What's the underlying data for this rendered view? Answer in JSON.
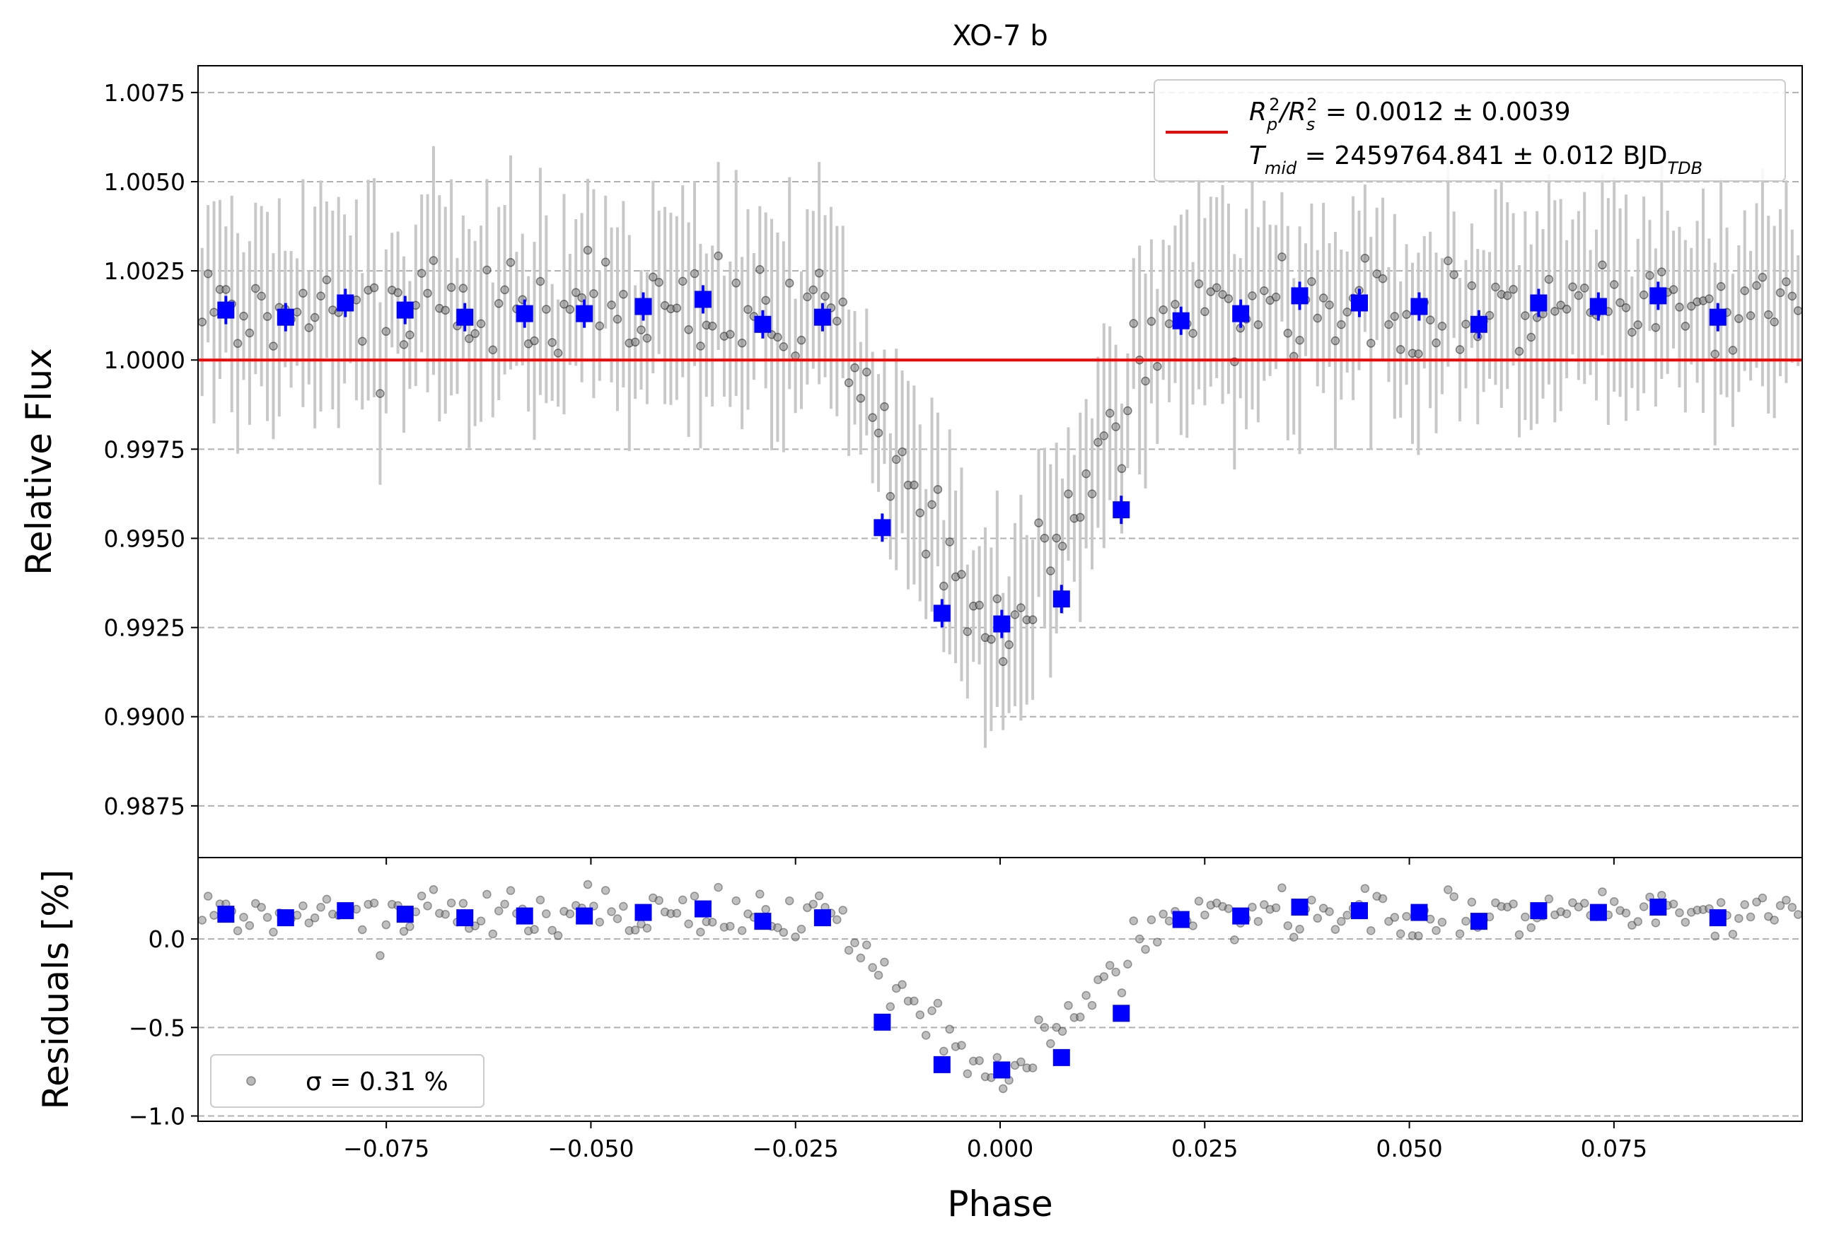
{
  "chart_data": [
    {
      "type": "scatter",
      "panel": "main",
      "title": "XO-7 b",
      "xlabel": "",
      "ylabel": "Relative Flux",
      "xlim": [
        -0.098,
        0.098
      ],
      "ylim": [
        0.98605,
        1.00825
      ],
      "grid": "horizontal dashed",
      "yticks": [
        "0.9875",
        "0.9900",
        "0.9925",
        "0.9950",
        "0.9975",
        "1.0000",
        "1.0025",
        "1.0050",
        "1.0075"
      ],
      "ytick_values": [
        0.9875,
        0.99,
        0.9925,
        0.995,
        0.9975,
        1.0,
        1.0025,
        1.005,
        1.0075
      ],
      "legend": {
        "placement": "upper right",
        "line1_main": "R",
        "line1_sub1": "p",
        "line1_sup1": "2",
        "line1_mid": "/R",
        "line1_sub2": "s",
        "line1_sup2": "2",
        "line1_value": " = 0.0012 ± 0.0039",
        "line2_main": "T",
        "line2_sub": "mid",
        "line2_value": " = 2459764.841 ± 0.012 BJD",
        "line2_suffix_sub": "TDB"
      },
      "model_line": {
        "y": 1.0,
        "color": "#ff0000"
      },
      "binned": {
        "color": "#0000ff",
        "x": [
          -0.0946,
          -0.0873,
          -0.08,
          -0.0727,
          -0.0654,
          -0.0581,
          -0.0508,
          -0.0436,
          -0.0363,
          -0.029,
          -0.0217,
          -0.0144,
          -0.0071,
          0.0002,
          0.0075,
          0.0148,
          0.0221,
          0.0294,
          0.0366,
          0.0439,
          0.0512,
          0.0585,
          0.0658,
          0.0731,
          0.0804,
          0.0877
        ],
        "y": [
          1.0014,
          1.0012,
          1.0016,
          1.0014,
          1.0012,
          1.0013,
          1.0013,
          1.0015,
          1.0017,
          1.001,
          1.0012,
          0.9953,
          0.9929,
          0.9926,
          0.9933,
          0.9958,
          1.0011,
          1.0013,
          1.0018,
          1.0016,
          1.0015,
          1.001,
          1.0016,
          1.0015,
          1.0018,
          1.0012
        ]
      },
      "raw": {
        "color": "#000000",
        "errorbar_color": "#c8c8c8",
        "errorbar_halfwidth": 0.0025
      }
    },
    {
      "type": "scatter",
      "panel": "residuals",
      "xlabel": "Phase",
      "ylabel": "Residuals [%]",
      "xlim": [
        -0.098,
        0.098
      ],
      "ylim": [
        -1.03,
        0.46
      ],
      "grid": "horizontal dashed",
      "yticks": [
        "−1.0",
        "−0.5",
        "0.0"
      ],
      "ytick_values": [
        -1.0,
        -0.5,
        0.0
      ],
      "xticks": [
        "−0.075",
        "−0.050",
        "−0.025",
        "0.000",
        "0.025",
        "0.050",
        "0.075"
      ],
      "xtick_values": [
        -0.075,
        -0.05,
        -0.025,
        0.0,
        0.025,
        0.05,
        0.075
      ],
      "legend": {
        "placement": "lower left",
        "label": "σ = 0.31 %"
      },
      "binned": {
        "color": "#0000ff",
        "x": [
          -0.0946,
          -0.0873,
          -0.08,
          -0.0727,
          -0.0654,
          -0.0581,
          -0.0508,
          -0.0436,
          -0.0363,
          -0.029,
          -0.0217,
          -0.0144,
          -0.0071,
          0.0002,
          0.0075,
          0.0148,
          0.0221,
          0.0294,
          0.0366,
          0.0439,
          0.0512,
          0.0585,
          0.0658,
          0.0731,
          0.0804,
          0.0877
        ],
        "y": [
          0.14,
          0.12,
          0.16,
          0.14,
          0.12,
          0.13,
          0.13,
          0.15,
          0.17,
          0.1,
          0.12,
          -0.47,
          -0.71,
          -0.74,
          -0.67,
          -0.42,
          0.11,
          0.13,
          0.18,
          0.16,
          0.15,
          0.1,
          0.16,
          0.15,
          0.18,
          0.12
        ]
      }
    }
  ]
}
